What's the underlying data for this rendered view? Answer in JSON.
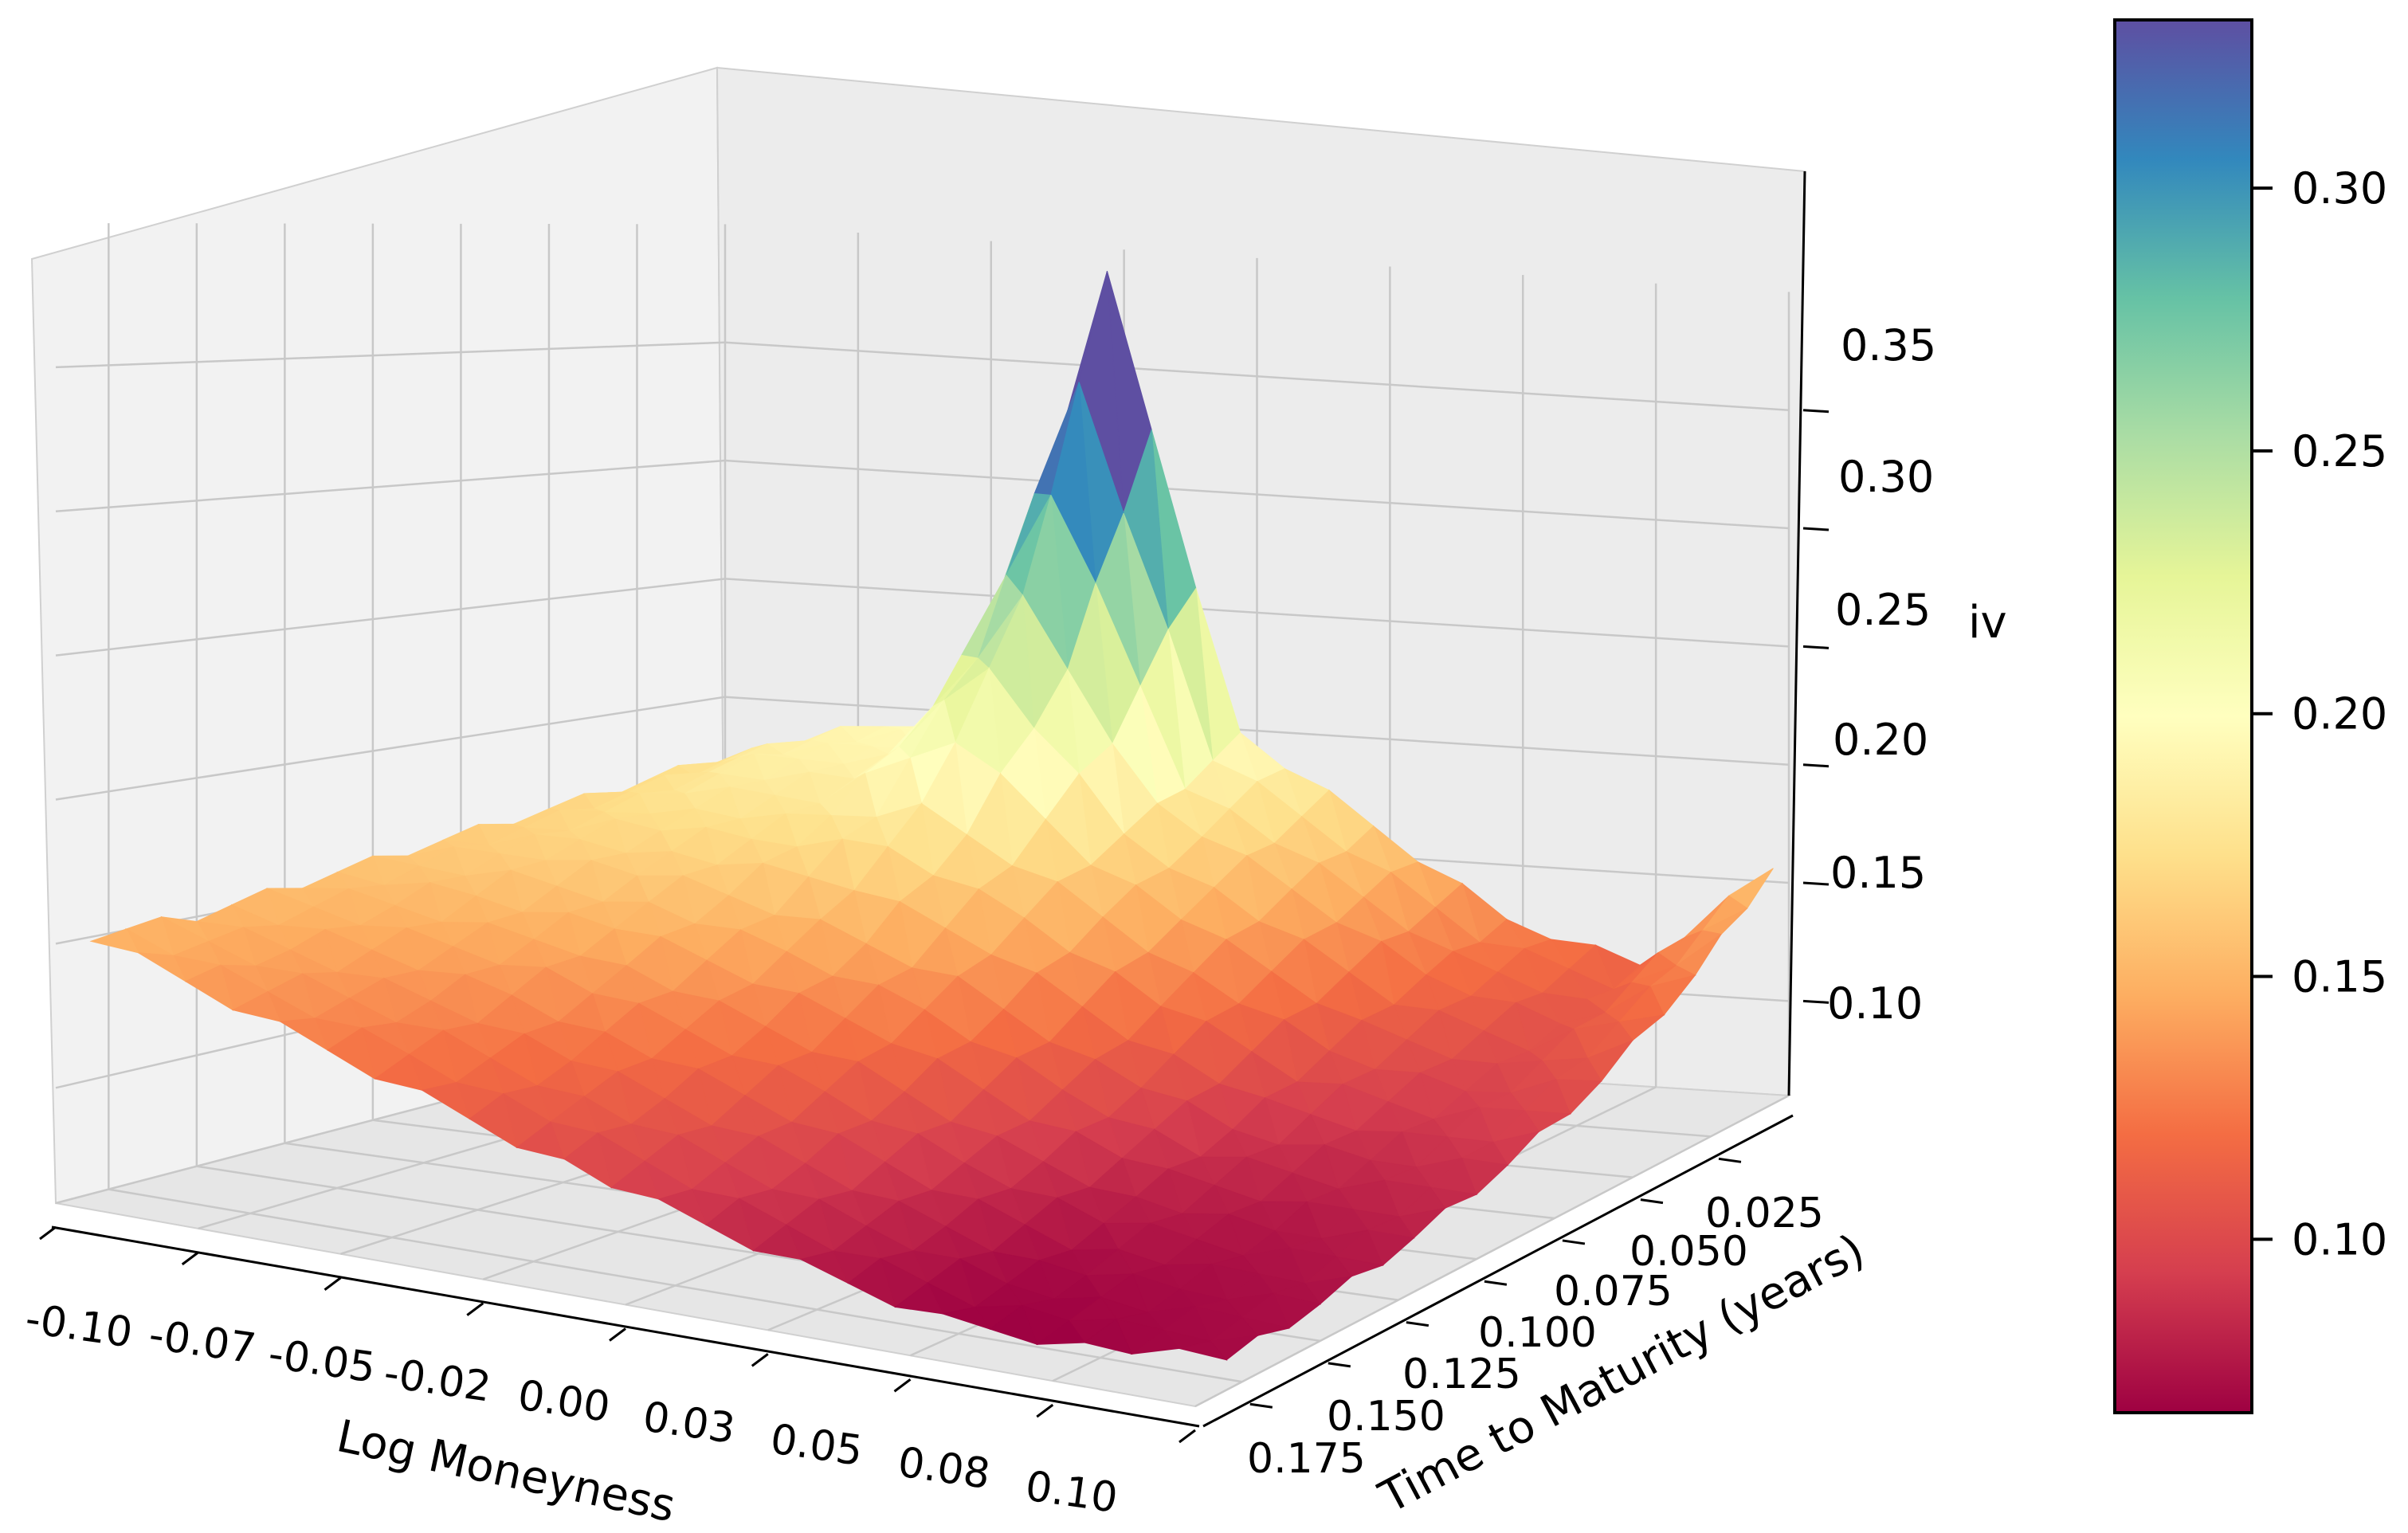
{
  "chart_data": {
    "type": "surface3d",
    "colormap": "Spectral",
    "x": {
      "label": "Log Moneyness",
      "range": [
        -0.1,
        0.1
      ],
      "ticks": [
        -0.1,
        -0.075,
        -0.05,
        -0.025,
        0.0,
        0.025,
        0.05,
        0.075,
        0.1
      ],
      "tick_labels": [
        "-0.10",
        "-0.07",
        "-0.05",
        "-0.02",
        "0.00",
        "0.03",
        "0.05",
        "0.08",
        "0.10"
      ]
    },
    "y": {
      "label": "Time to Maturity (years)",
      "range": [
        0.0,
        0.19
      ],
      "ticks": [
        0.025,
        0.05,
        0.075,
        0.1,
        0.125,
        0.15,
        0.175
      ],
      "tick_labels": [
        "0.025",
        "0.050",
        "0.075",
        "0.100",
        "0.125",
        "0.150",
        "0.175"
      ]
    },
    "z": {
      "label": "iv",
      "range": [
        0.06,
        0.4
      ],
      "ticks": [
        0.1,
        0.15,
        0.2,
        0.25,
        0.3,
        0.35
      ],
      "tick_labels": [
        "0.10",
        "0.15",
        "0.20",
        "0.25",
        "0.30",
        "0.35"
      ]
    },
    "colorbar": {
      "range": [
        0.067,
        0.332
      ],
      "ticks": [
        0.1,
        0.15,
        0.2,
        0.25,
        0.3
      ],
      "tick_labels": [
        "0.10",
        "0.15",
        "0.20",
        "0.25",
        "0.30"
      ]
    },
    "grid": true,
    "surface": {
      "description": "Implied volatility smile surface: higher for negative log moneyness and short maturities, minimum near 0.03-0.05 moneyness at long maturity, sharp spike at short maturity near -0.03 moneyness.",
      "x_grid": [
        -0.1,
        -0.075,
        -0.05,
        -0.025,
        0.0,
        0.025,
        0.05,
        0.075,
        0.1
      ],
      "y_grid": [
        0.005,
        0.03,
        0.06,
        0.09,
        0.12,
        0.15,
        0.18
      ],
      "z_approx": [
        [
          0.175,
          0.19,
          0.2,
          0.39,
          0.2,
          0.165,
          0.13,
          0.115,
          0.16
        ],
        [
          0.17,
          0.185,
          0.19,
          0.26,
          0.18,
          0.15,
          0.12,
          0.105,
          0.13
        ],
        [
          0.165,
          0.175,
          0.175,
          0.185,
          0.16,
          0.13,
          0.105,
          0.095,
          0.105
        ],
        [
          0.16,
          0.165,
          0.16,
          0.15,
          0.135,
          0.11,
          0.09,
          0.085,
          0.09
        ],
        [
          0.155,
          0.15,
          0.145,
          0.13,
          0.115,
          0.095,
          0.08,
          0.075,
          0.08
        ],
        [
          0.15,
          0.14,
          0.13,
          0.115,
          0.1,
          0.085,
          0.072,
          0.07,
          0.073
        ],
        [
          0.15,
          0.135,
          0.12,
          0.105,
          0.09,
          0.078,
          0.068,
          0.067,
          0.07
        ]
      ]
    }
  }
}
